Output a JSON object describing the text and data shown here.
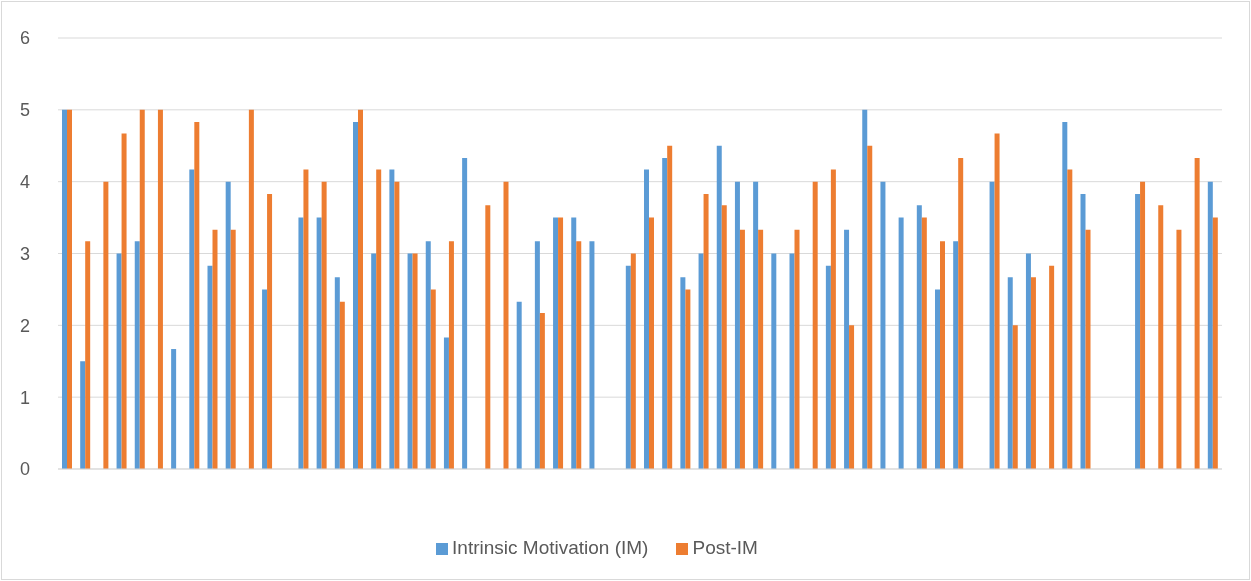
{
  "chart_data": {
    "type": "bar",
    "categories": [
      null,
      null,
      null,
      null,
      null,
      null,
      null,
      null,
      null,
      null,
      null,
      null,
      null,
      null,
      null,
      null,
      null,
      null,
      null,
      null,
      null,
      null,
      null,
      null,
      null,
      null,
      null,
      null,
      null,
      null,
      null,
      null,
      null,
      null,
      null,
      null,
      null,
      null,
      null,
      null,
      null,
      null,
      null,
      null,
      null,
      null,
      null,
      null,
      null,
      null,
      null,
      null,
      null,
      null,
      null,
      null,
      null,
      null,
      null,
      null,
      null,
      null,
      null,
      null
    ],
    "series": [
      {
        "name": "Intrinsic Motivation (IM)",
        "color": "#5b9bd5",
        "values": [
          5,
          1.5,
          null,
          3,
          3.17,
          null,
          1.67,
          4.17,
          2.83,
          4,
          null,
          2.5,
          null,
          3.5,
          3.5,
          2.67,
          4.83,
          3,
          4.17,
          3,
          3.17,
          1.83,
          4.33,
          null,
          null,
          2.33,
          3.17,
          3.5,
          3.5,
          3.17,
          null,
          2.83,
          4.17,
          4.33,
          2.67,
          3,
          4.5,
          4,
          4,
          3,
          3,
          null,
          2.83,
          3.33,
          5,
          4,
          3.5,
          3.67,
          2.5,
          3.17,
          null,
          4,
          2.67,
          3,
          null,
          4.83,
          3.83,
          null,
          null,
          3.83,
          null,
          null,
          null,
          4
        ]
      },
      {
        "name": "Post-IM",
        "color": "#ed7d31",
        "values": [
          5,
          3.17,
          4,
          4.67,
          5,
          5,
          null,
          4.83,
          3.33,
          3.33,
          5,
          3.83,
          null,
          4.17,
          4,
          2.33,
          5,
          4.17,
          4,
          3,
          2.5,
          3.17,
          null,
          3.67,
          4,
          null,
          2.17,
          3.5,
          3.17,
          null,
          null,
          3,
          3.5,
          4.5,
          2.5,
          3.83,
          3.67,
          3.33,
          3.33,
          null,
          3.33,
          4,
          4.17,
          2,
          4.5,
          null,
          null,
          3.5,
          3.17,
          4.33,
          null,
          4.67,
          2,
          2.67,
          2.83,
          4.17,
          3.33,
          null,
          null,
          4,
          3.67,
          3.33,
          4.33,
          3.5
        ]
      }
    ],
    "ylim": [
      0,
      6
    ],
    "yticks": [
      0,
      1,
      2,
      3,
      4,
      5,
      6
    ],
    "grid": "y",
    "legend": "bottom"
  }
}
